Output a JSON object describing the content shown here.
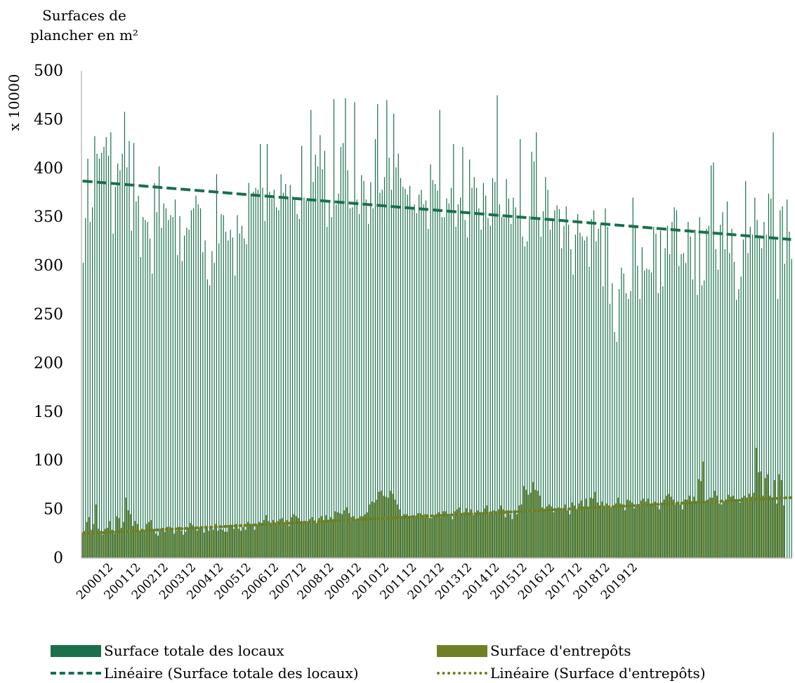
{
  "chart_data": {
    "type": "bar",
    "ylabel_lines": [
      "Surfaces de",
      "plancher en m²"
    ],
    "ylabel_scale": "x 10000",
    "ylim": [
      0,
      500
    ],
    "yticks": [
      0,
      50,
      100,
      150,
      200,
      250,
      300,
      350,
      400,
      450,
      500
    ],
    "xtick_labels": [
      "200012",
      "200112",
      "200212",
      "200312",
      "200412",
      "200512",
      "200612",
      "200712",
      "200812",
      "200912",
      "201012",
      "201112",
      "201212",
      "201312",
      "201412",
      "201512",
      "201612",
      "201712",
      "201812",
      "201912"
    ],
    "x_start": "200001",
    "x_end": "202003",
    "grid": false,
    "colors": {
      "total": "#19704B",
      "entrepots": "#6F7F25",
      "trend_total": "#19704B",
      "trend_entrepots": "#6F7F25"
    },
    "series": [
      {
        "name": "Surface totale des locaux",
        "values": [
          303,
          349,
          410,
          345,
          360,
          433,
          415,
          410,
          416,
          422,
          432,
          413,
          437,
          333,
          381,
          405,
          398,
          415,
          458,
          401,
          428,
          336,
          426,
          366,
          372,
          309,
          350,
          347,
          345,
          328,
          292,
          385,
          355,
          402,
          339,
          364,
          359,
          347,
          352,
          350,
          368,
          311,
          351,
          305,
          331,
          339,
          337,
          357,
          359,
          372,
          363,
          359,
          314,
          326,
          286,
          280,
          315,
          303,
          394,
          323,
          353,
          352,
          335,
          326,
          337,
          329,
          290,
          352,
          333,
          341,
          328,
          322,
          385,
          373,
          376,
          380,
          378,
          425,
          380,
          346,
          425,
          376,
          369,
          378,
          360,
          357,
          394,
          375,
          384,
          371,
          383,
          371,
          369,
          353,
          348,
          423,
          370,
          367,
          369,
          460,
          386,
          414,
          402,
          434,
          399,
          418,
          340,
          367,
          350,
          471,
          363,
          374,
          422,
          426,
          472,
          398,
          359,
          360,
          468,
          368,
          353,
          393,
          387,
          368,
          343,
          386,
          359,
          430,
          466,
          375,
          378,
          391,
          470,
          411,
          378,
          456,
          401,
          415,
          390,
          381,
          379,
          373,
          382,
          360,
          363,
          354,
          373,
          378,
          363,
          367,
          338,
          404,
          388,
          384,
          377,
          460,
          350,
          350,
          369,
          364,
          380,
          425,
          340,
          363,
          370,
          422,
          347,
          329,
          409,
          380,
          391,
          380,
          359,
          337,
          385,
          372,
          349,
          341,
          390,
          386,
          475,
          363,
          350,
          349,
          389,
          369,
          343,
          370,
          360,
          349,
          430,
          330,
          320,
          325,
          351,
          417,
          407,
          437,
          348,
          330,
          356,
          391,
          378,
          337,
          346,
          357,
          362,
          358,
          318,
          341,
          361,
          342,
          317,
          291,
          332,
          353,
          334,
          330,
          326,
          330,
          299,
          348,
          357,
          325,
          338,
          343,
          279,
          359,
          340,
          261,
          282,
          232,
          222,
          276,
          298,
          292,
          272,
          266,
          274,
          370,
          339,
          300,
          266,
          319,
          295,
          297,
          296,
          293,
          340,
          333,
          272,
          336,
          279,
          318,
          341,
          312,
          345,
          360,
          357,
          300,
          312,
          313,
          303,
          345,
          330,
          286,
          337,
          270,
          350,
          280,
          285,
          338,
          341,
          403,
          406,
          317,
          296,
          342,
          355,
          317,
          366,
          313,
          338,
          304,
          265,
          276,
          289,
          327,
          387,
          313,
          340,
          332,
          370,
          347,
          328,
          318,
          345,
          332,
          374,
          369,
          437,
          329,
          266,
          357,
          361,
          302,
          368,
          335,
          307
        ]
      },
      {
        "name": "Surface d'entrepôts",
        "values": [
          25,
          28,
          37,
          42,
          29,
          35,
          55,
          30,
          28,
          24,
          30,
          31,
          38,
          29,
          25,
          43,
          41,
          31,
          37,
          62,
          49,
          45,
          33,
          38,
          35,
          28,
          30,
          29,
          35,
          37,
          39,
          28,
          25,
          23,
          29,
          31,
          27,
          32,
          32,
          31,
          25,
          28,
          32,
          28,
          24,
          27,
          30,
          36,
          34,
          31,
          28,
          31,
          30,
          26,
          32,
          28,
          33,
          29,
          35,
          28,
          30,
          29,
          27,
          27,
          33,
          33,
          30,
          35,
          30,
          28,
          32,
          29,
          37,
          33,
          35,
          29,
          34,
          37,
          36,
          39,
          44,
          38,
          35,
          39,
          36,
          38,
          40,
          41,
          36,
          39,
          33,
          42,
          45,
          43,
          41,
          38,
          36,
          36,
          37,
          40,
          42,
          38,
          36,
          41,
          43,
          39,
          44,
          38,
          42,
          40,
          48,
          47,
          46,
          45,
          49,
          52,
          46,
          42,
          43,
          40,
          38,
          43,
          43,
          45,
          47,
          55,
          58,
          57,
          60,
          68,
          69,
          64,
          63,
          62,
          69,
          66,
          60,
          55,
          50,
          43,
          45,
          45,
          42,
          41,
          44,
          42,
          46,
          46,
          43,
          45,
          45,
          41,
          41,
          44,
          45,
          47,
          42,
          48,
          48,
          44,
          43,
          40,
          48,
          50,
          52,
          46,
          47,
          51,
          47,
          50,
          44,
          46,
          49,
          45,
          45,
          51,
          54,
          45,
          48,
          49,
          47,
          50,
          54,
          50,
          42,
          49,
          45,
          40,
          48,
          45,
          54,
          55,
          74,
          70,
          65,
          67,
          78,
          70,
          69,
          64,
          52,
          49,
          53,
          55,
          53,
          47,
          51,
          52,
          49,
          50,
          55,
          49,
          45,
          57,
          54,
          50,
          56,
          59,
          53,
          61,
          50,
          62,
          61,
          68,
          57,
          54,
          58,
          53,
          56,
          51,
          52,
          54,
          56,
          62,
          56,
          55,
          49,
          60,
          59,
          57,
          51,
          55,
          54,
          59,
          61,
          58,
          61,
          56,
          54,
          58,
          53,
          50,
          57,
          60,
          64,
          66,
          63,
          60,
          55,
          58,
          55,
          50,
          60,
          60,
          64,
          58,
          63,
          57,
          81,
          79,
          99,
          58,
          60,
          62,
          62,
          69,
          64,
          56,
          55,
          58,
          60,
          65,
          63,
          64,
          58,
          60,
          57,
          62,
          64,
          62,
          66,
          63,
          67,
          113,
          88,
          89,
          64,
          82,
          86,
          64,
          62,
          80,
          56,
          86,
          80,
          54
        ]
      }
    ],
    "trendlines": [
      {
        "name": "Linéaire (Surface totale des locaux)",
        "start": 387,
        "end": 327,
        "style": "dashed"
      },
      {
        "name": "Linéaire (Surface d'entrepôts)",
        "start": 25,
        "end": 62,
        "style": "dotted"
      }
    ]
  }
}
